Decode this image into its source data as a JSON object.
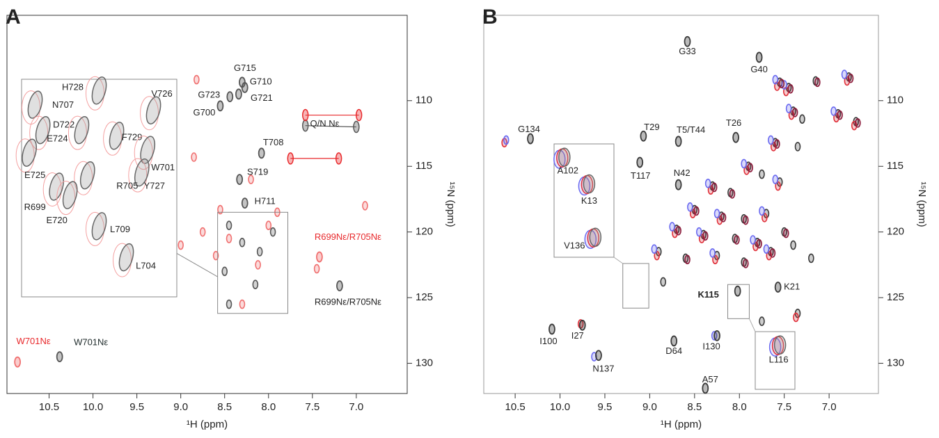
{
  "chart_data": [
    {
      "type": "scatter",
      "panel": "A",
      "xlabel": "¹H (ppm)",
      "ylabel": "¹⁵N (ppm)",
      "xlim": [
        6.42,
        10.98
      ],
      "ylim": [
        103.5,
        132.3
      ],
      "x_inverted": true,
      "y_inverted": true,
      "xticks": [
        {
          "value": 10.5,
          "label": "10.5"
        },
        {
          "value": 10,
          "label": "10.0"
        },
        9.5,
        {
          "value": 9,
          "label": "9.0"
        },
        8.5,
        {
          "value": 8,
          "label": "8.0"
        },
        7.5,
        {
          "value": 7,
          "label": "7.0"
        }
      ],
      "yticks": [
        110,
        115,
        120,
        125,
        130
      ],
      "series": [
        {
          "color": "#f07070",
          "x": [
            8.82,
            8.85,
            8.55,
            8.2,
            7.9,
            8.6,
            8.75,
            7.45,
            6.9,
            8.3,
            8.0,
            9.0,
            8.45,
            8.12
          ],
          "values": [
            108.4,
            114.3,
            118.3,
            116.0,
            118.5,
            121.8,
            120.0,
            122.8,
            118.0,
            125.5,
            119.5,
            121.0,
            120.5,
            122.5
          ]
        },
        {
          "color": "#555555",
          "x": [
            8.45,
            8.3,
            8.1,
            8.5,
            8.15,
            7.95,
            8.45
          ],
          "values": [
            119.5,
            120.8,
            121.5,
            123.0,
            124.0,
            120.0,
            125.5
          ]
        }
      ],
      "peaks": [
        {
          "label": "G715",
          "x": 8.3,
          "y": 108.6,
          "color": "#555555"
        },
        {
          "label": "G710",
          "x": 8.27,
          "y": 109.0,
          "color": "#555555"
        },
        {
          "label": "G723",
          "x": 8.44,
          "y": 109.7,
          "color": "#555555"
        },
        {
          "label": "G721",
          "x": 8.34,
          "y": 109.5,
          "color": "#555555"
        },
        {
          "label": "G700",
          "x": 8.55,
          "y": 110.4,
          "color": "#555555"
        },
        {
          "label": "T708",
          "x": 8.08,
          "y": 114.0,
          "color": "#555555"
        },
        {
          "label": "S719",
          "x": 8.33,
          "y": 116.0,
          "color": "#555555"
        },
        {
          "label": "H711",
          "x": 8.27,
          "y": 117.8,
          "color": "#555555"
        },
        {
          "label": "W701Nε",
          "x": 10.86,
          "y": 129.9,
          "color": "#f07070",
          "label_color": "#e8282b"
        },
        {
          "label": "W701Nε",
          "x": 10.38,
          "y": 129.5,
          "color": "#555555",
          "label_color": "#1e2a2a"
        },
        {
          "label": "R699Nε/R705Nε",
          "x": 7.42,
          "y": 121.9,
          "color": "#f07070",
          "label_color": "#e8282b"
        },
        {
          "label": "R699Nε/R705Nε",
          "x": 7.19,
          "y": 124.1,
          "color": "#555555",
          "label_color": "#222222"
        }
      ],
      "pair_label": "Q/N  Nε",
      "pairs": [
        {
          "color": "#555555",
          "x": [
            7.58,
            7.0
          ],
          "y": [
            111.9,
            112.0
          ]
        },
        {
          "color": "#e8282b",
          "x": [
            7.58,
            6.97
          ],
          "y": [
            111.1,
            111.1
          ]
        },
        {
          "color": "#e8282b",
          "x": [
            7.75,
            7.2
          ],
          "y": [
            114.4,
            114.4
          ]
        }
      ],
      "zooms": [
        {
          "xlim": [
            7.78,
            8.58
          ],
          "ylim": [
            118.5,
            126.2
          ],
          "peaks": [
            {
              "label": "H728",
              "x": 8.18,
              "y": 118.9
            },
            {
              "label": "N707",
              "x": 8.51,
              "y": 119.4
            },
            {
              "label": "D722",
              "x": 8.47,
              "y": 120.3
            },
            {
              "label": "E724",
              "x": 8.27,
              "y": 120.3
            },
            {
              "label": "V726",
              "x": 7.9,
              "y": 119.6
            },
            {
              "label": "F729",
              "x": 8.09,
              "y": 120.5
            },
            {
              "label": "W701",
              "x": 7.93,
              "y": 121.0
            },
            {
              "label": "Y727",
              "x": 7.96,
              "y": 121.8
            },
            {
              "label": "R705",
              "x": 8.24,
              "y": 121.9
            },
            {
              "label": "E725",
              "x": 8.54,
              "y": 121.1
            },
            {
              "label": "R699",
              "x": 8.4,
              "y": 122.3
            },
            {
              "label": "E720",
              "x": 8.33,
              "y": 122.6
            },
            {
              "label": "L709",
              "x": 8.18,
              "y": 123.7
            },
            {
              "label": "L704",
              "x": 8.04,
              "y": 124.8
            }
          ]
        }
      ]
    },
    {
      "type": "scatter",
      "panel": "B",
      "xlabel": "¹H (ppm)",
      "ylabel": "¹⁵N (ppm)",
      "xlim": [
        6.45,
        10.85
      ],
      "ylim": [
        103.5,
        132.3
      ],
      "x_inverted": true,
      "y_inverted": true,
      "xticks": [
        {
          "value": 10.5,
          "label": "10.5"
        },
        {
          "value": 10,
          "label": "10.0"
        },
        9.5,
        {
          "value": 9,
          "label": "9.0"
        },
        8.5,
        {
          "value": 8,
          "label": "8.0"
        },
        7.5,
        {
          "value": 7,
          "label": "7.0"
        }
      ],
      "yticks": [
        110,
        115,
        120,
        125,
        130
      ],
      "series": [
        {
          "color": "#3a3a3a",
          "x": [
            7.55,
            7.45,
            7.15,
            6.78,
            7.4,
            7.3,
            6.9,
            6.7,
            7.6,
            7.35,
            7.9,
            7.75,
            8.3,
            8.1,
            7.55,
            8.5,
            8.2,
            7.95,
            7.7,
            8.7,
            8.4,
            8.05,
            7.8,
            7.5,
            8.9,
            8.6,
            8.25,
            7.95,
            7.65,
            8.85,
            7.4,
            7.2,
            7.35,
            7.75
          ],
          "values": [
            108.6,
            109.0,
            108.5,
            108.2,
            110.8,
            111.4,
            111.0,
            111.6,
            113.2,
            113.5,
            115.0,
            115.6,
            116.5,
            117.0,
            116.2,
            118.3,
            118.8,
            119.0,
            118.6,
            119.8,
            120.2,
            120.5,
            120.8,
            120.0,
            121.5,
            122.0,
            121.8,
            122.3,
            121.5,
            123.8,
            121.0,
            122.0,
            126.2,
            126.8
          ]
        },
        {
          "color": "#e0303a",
          "x": [
            7.58,
            7.48,
            6.8,
            7.42,
            6.92,
            6.72,
            7.62,
            7.92,
            8.32,
            7.57,
            8.52,
            8.22,
            7.72,
            8.72,
            8.42,
            7.82,
            8.92,
            8.27,
            7.67,
            7.37,
            10.62,
            9.77
          ],
          "values": [
            108.9,
            109.3,
            108.5,
            111.1,
            111.3,
            111.9,
            113.5,
            115.3,
            116.8,
            116.5,
            118.6,
            119.1,
            118.9,
            120.1,
            120.5,
            121.1,
            121.8,
            122.1,
            121.8,
            126.5,
            113.2,
            127.0
          ]
        },
        {
          "color": "#6a6af0",
          "x": [
            7.6,
            7.5,
            6.83,
            7.45,
            6.95,
            7.65,
            7.95,
            8.35,
            7.6,
            8.55,
            8.25,
            7.75,
            8.75,
            8.45,
            7.85,
            8.95,
            8.3,
            7.7,
            10.6,
            9.62,
            8.28
          ],
          "values": [
            108.4,
            108.8,
            108.0,
            110.6,
            110.8,
            113.0,
            114.8,
            116.3,
            116.0,
            118.1,
            118.6,
            118.4,
            119.6,
            120.0,
            120.6,
            121.3,
            121.6,
            121.3,
            113.0,
            129.5,
            127.9
          ]
        },
        {
          "color": "#8b1a3a",
          "x": [
            7.53,
            7.43,
            7.13,
            6.76,
            7.38,
            6.88,
            6.68,
            7.58,
            7.88,
            8.28,
            8.08,
            8.48,
            8.18,
            7.93,
            8.68,
            8.38,
            8.03,
            7.78,
            7.48,
            8.58,
            7.93,
            7.63
          ],
          "values": [
            108.7,
            109.1,
            108.6,
            108.3,
            110.9,
            111.1,
            111.7,
            113.3,
            115.1,
            116.6,
            117.1,
            118.4,
            118.9,
            119.1,
            119.9,
            120.3,
            120.6,
            120.9,
            120.1,
            122.1,
            122.4,
            121.6
          ]
        }
      ],
      "peaks": [
        {
          "label": "G33",
          "x": 8.58,
          "y": 105.5,
          "color": "#3a3a3a"
        },
        {
          "label": "G40",
          "x": 7.78,
          "y": 106.7,
          "color": "#3a3a3a"
        },
        {
          "label": "G134",
          "x": 10.33,
          "y": 112.9,
          "color": "#3a3a3a"
        },
        {
          "label": "T29",
          "x": 9.07,
          "y": 112.7,
          "color": "#3a3a3a"
        },
        {
          "label": "T5/T44",
          "x": 8.68,
          "y": 113.1,
          "color": "#3a3a3a"
        },
        {
          "label": "T26",
          "x": 8.04,
          "y": 112.8,
          "color": "#3a3a3a"
        },
        {
          "label": "T117",
          "x": 9.11,
          "y": 114.7,
          "color": "#3a3a3a"
        },
        {
          "label": "N42",
          "x": 8.68,
          "y": 116.4,
          "color": "#3a3a3a"
        },
        {
          "label": "A57",
          "x": 8.38,
          "y": 131.9,
          "color": "#3a3a3a"
        },
        {
          "label": "D64",
          "x": 8.73,
          "y": 128.3,
          "color": "#3a3a3a"
        },
        {
          "label": "I130",
          "x": 8.25,
          "y": 127.9,
          "color": "#3a3a3a"
        },
        {
          "label": "N137",
          "x": 9.57,
          "y": 129.4,
          "color": "#3a3a3a"
        },
        {
          "label": "I100",
          "x": 10.09,
          "y": 127.4,
          "color": "#3a3a3a"
        },
        {
          "label": "I27",
          "x": 9.75,
          "y": 127.1,
          "color": "#3a3a3a"
        },
        {
          "label": "K115",
          "x": 8.02,
          "y": 124.5,
          "color": "#3a3a3a",
          "label_bold": true
        },
        {
          "label": "K21",
          "x": 7.57,
          "y": 124.2,
          "color": "#3a3a3a"
        }
      ],
      "zooms": [
        {
          "xlim": [
            9.01,
            9.3
          ],
          "ylim": [
            122.4,
            125.8
          ],
          "peaks": [
            {
              "label": "A102",
              "x": 9.25,
              "y": 122.8
            },
            {
              "label": "K13",
              "x": 9.13,
              "y": 123.6
            },
            {
              "label": "V136",
              "x": 9.1,
              "y": 125.2
            }
          ]
        },
        {
          "xlim": [
            7.89,
            8.13
          ],
          "ylim": [
            124.0,
            126.6
          ],
          "peaks": [
            {
              "label": "L116",
              "x": 7.98,
              "y": 124.6
            }
          ]
        }
      ]
    }
  ]
}
